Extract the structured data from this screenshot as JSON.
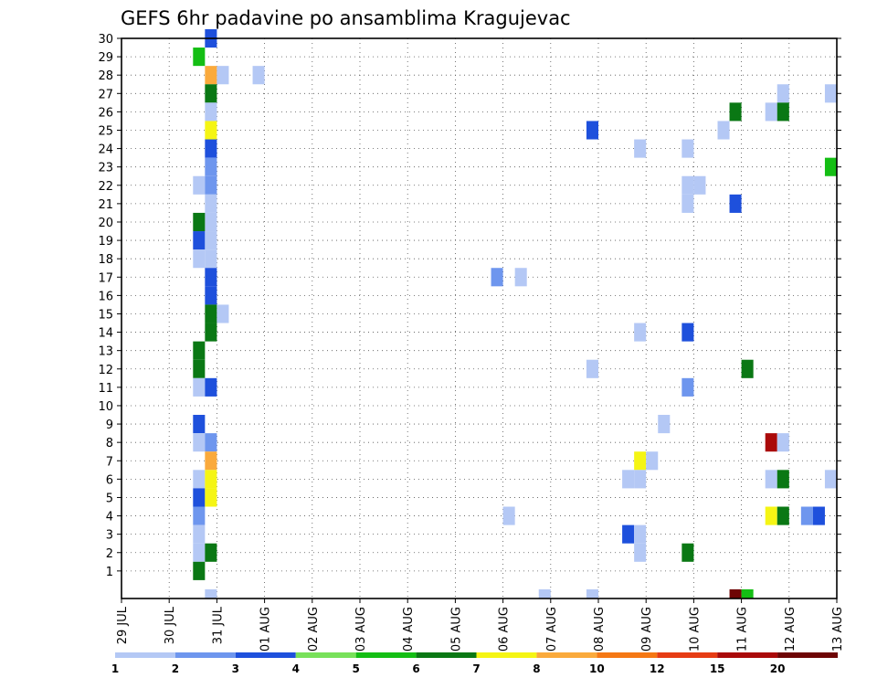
{
  "chart_data": {
    "type": "heatmap",
    "title": "GEFS 6hr padavine po ansamblima Kragujevac",
    "xlabel": "",
    "ylabel": "",
    "x_ticks": [
      "29 JUL",
      "30 JUL",
      "31 JUL",
      "01 AUG",
      "02 AUG",
      "03 AUG",
      "04 AUG",
      "05 AUG",
      "06 AUG",
      "07 AUG",
      "08 AUG",
      "09 AUG",
      "10 AUG",
      "11 AUG",
      "12 AUG",
      "13 AUG"
    ],
    "xlim_days": [
      0,
      15
    ],
    "y_ticks": [
      "1",
      "2",
      "3",
      "4",
      "5",
      "6",
      "7",
      "8",
      "9",
      "10",
      "11",
      "12",
      "13",
      "14",
      "15",
      "16",
      "17",
      "18",
      "19",
      "20",
      "21",
      "22",
      "23",
      "24",
      "25",
      "26",
      "27",
      "28",
      "29",
      "30"
    ],
    "ylim": [
      0,
      30
    ],
    "grid": true,
    "color_scale": {
      "labels": [
        "1",
        "2",
        "3",
        "4",
        "5",
        "6",
        "7",
        "8",
        "10",
        "12",
        "15",
        "20"
      ],
      "colors": [
        "#b4c8f5",
        "#6e96ee",
        "#1e50dc",
        "#78e15a",
        "#14be14",
        "#0a7814",
        "#f5f514",
        "#faaa3c",
        "#f57814",
        "#e63c14",
        "#aa0a0a",
        "#6e0505"
      ]
    },
    "cells_note": "each cell: [day offset from 29 JUL, ensemble member (0 = control), color level index into color_scale.colors]",
    "cells": [
      [
        1.5,
        29,
        4
      ],
      [
        1.75,
        30,
        2
      ],
      [
        1.75,
        28,
        7
      ],
      [
        2.0,
        28,
        0
      ],
      [
        2.75,
        28,
        0
      ],
      [
        1.75,
        27,
        5
      ],
      [
        1.75,
        26,
        0
      ],
      [
        1.75,
        25,
        6
      ],
      [
        1.75,
        24,
        2
      ],
      [
        1.75,
        23,
        1
      ],
      [
        1.5,
        22,
        0
      ],
      [
        1.75,
        22,
        1
      ],
      [
        1.75,
        21,
        0
      ],
      [
        1.75,
        20,
        0
      ],
      [
        1.5,
        20,
        5
      ],
      [
        1.5,
        19,
        2
      ],
      [
        1.75,
        19,
        0
      ],
      [
        1.5,
        18,
        0
      ],
      [
        1.75,
        18,
        0
      ],
      [
        1.75,
        17,
        2
      ],
      [
        1.75,
        16,
        2
      ],
      [
        1.75,
        15,
        5
      ],
      [
        1.75,
        14,
        5
      ],
      [
        2.0,
        15,
        0
      ],
      [
        1.5,
        13,
        5
      ],
      [
        1.5,
        12,
        5
      ],
      [
        1.5,
        11,
        0
      ],
      [
        1.75,
        11,
        2
      ],
      [
        1.5,
        9,
        2
      ],
      [
        1.5,
        8,
        0
      ],
      [
        1.75,
        8,
        1
      ],
      [
        1.75,
        7,
        7
      ],
      [
        1.5,
        6,
        0
      ],
      [
        1.75,
        6,
        6
      ],
      [
        1.5,
        5,
        2
      ],
      [
        1.75,
        5,
        6
      ],
      [
        1.5,
        4,
        1
      ],
      [
        1.5,
        3,
        0
      ],
      [
        1.5,
        2,
        0
      ],
      [
        1.75,
        2,
        5
      ],
      [
        1.5,
        1,
        5
      ],
      [
        1.75,
        0,
        0
      ],
      [
        7.75,
        17,
        1
      ],
      [
        8.25,
        17,
        0
      ],
      [
        8.0,
        4,
        0
      ],
      [
        8.75,
        0,
        0
      ],
      [
        9.75,
        0,
        0
      ],
      [
        9.75,
        25,
        2
      ],
      [
        9.75,
        12,
        0
      ],
      [
        10.5,
        6,
        0
      ],
      [
        10.75,
        7,
        6
      ],
      [
        11.0,
        7,
        0
      ],
      [
        10.75,
        6,
        0
      ],
      [
        10.5,
        3,
        2
      ],
      [
        10.75,
        3,
        0
      ],
      [
        10.75,
        2,
        0
      ],
      [
        10.75,
        24,
        0
      ],
      [
        10.75,
        14,
        0
      ],
      [
        11.25,
        9,
        0
      ],
      [
        11.75,
        24,
        0
      ],
      [
        11.75,
        22,
        0
      ],
      [
        12.0,
        22,
        0
      ],
      [
        11.75,
        21,
        0
      ],
      [
        11.75,
        14,
        2
      ],
      [
        11.75,
        11,
        1
      ],
      [
        11.75,
        2,
        5
      ],
      [
        12.5,
        25,
        0
      ],
      [
        12.75,
        26,
        5
      ],
      [
        12.75,
        21,
        2
      ],
      [
        13.0,
        12,
        5
      ],
      [
        12.75,
        0,
        11
      ],
      [
        13.0,
        0,
        4
      ],
      [
        13.5,
        26,
        0
      ],
      [
        13.75,
        27,
        0
      ],
      [
        13.75,
        26,
        5
      ],
      [
        13.5,
        8,
        10
      ],
      [
        13.75,
        8,
        0
      ],
      [
        13.5,
        6,
        0
      ],
      [
        13.75,
        6,
        5
      ],
      [
        13.5,
        4,
        6
      ],
      [
        13.75,
        4,
        5
      ],
      [
        14.25,
        4,
        1
      ],
      [
        14.5,
        4,
        2
      ],
      [
        14.75,
        27,
        0
      ],
      [
        14.75,
        23,
        4
      ],
      [
        14.75,
        6,
        0
      ]
    ]
  }
}
